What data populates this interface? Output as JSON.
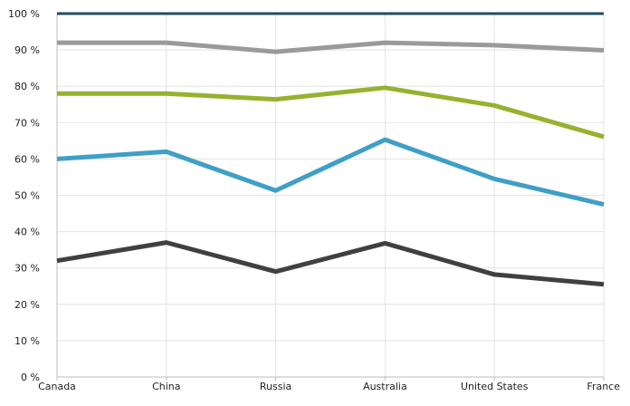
{
  "chart_data": {
    "type": "line",
    "title": "",
    "xlabel": "",
    "ylabel": "",
    "categories": [
      "Canada",
      "China",
      "Russia",
      "Australia",
      "United States",
      "France"
    ],
    "ylim": [
      0,
      100
    ],
    "y_ticks": [
      "0 %",
      "10 %",
      "20 %",
      "30 %",
      "40 %",
      "50 %",
      "60 %",
      "70 %",
      "80 %",
      "90 %",
      "100 %"
    ],
    "grid": true,
    "legend": "none",
    "series": [
      {
        "values": [
          100,
          100,
          100,
          100,
          100,
          100
        ],
        "color": "#1f4e5f"
      },
      {
        "values": [
          92,
          92,
          89.5,
          92,
          91.3,
          89.9
        ],
        "color": "#9a9a9a"
      },
      {
        "values": [
          78,
          78,
          76.4,
          79.6,
          74.7,
          66.1
        ],
        "color": "#96b22e"
      },
      {
        "values": [
          60,
          62,
          51.3,
          65.3,
          54.5,
          47.5
        ],
        "color": "#3f9fc6"
      },
      {
        "values": [
          32,
          37,
          29,
          36.8,
          28.2,
          25.5
        ],
        "color": "#404040"
      }
    ]
  }
}
